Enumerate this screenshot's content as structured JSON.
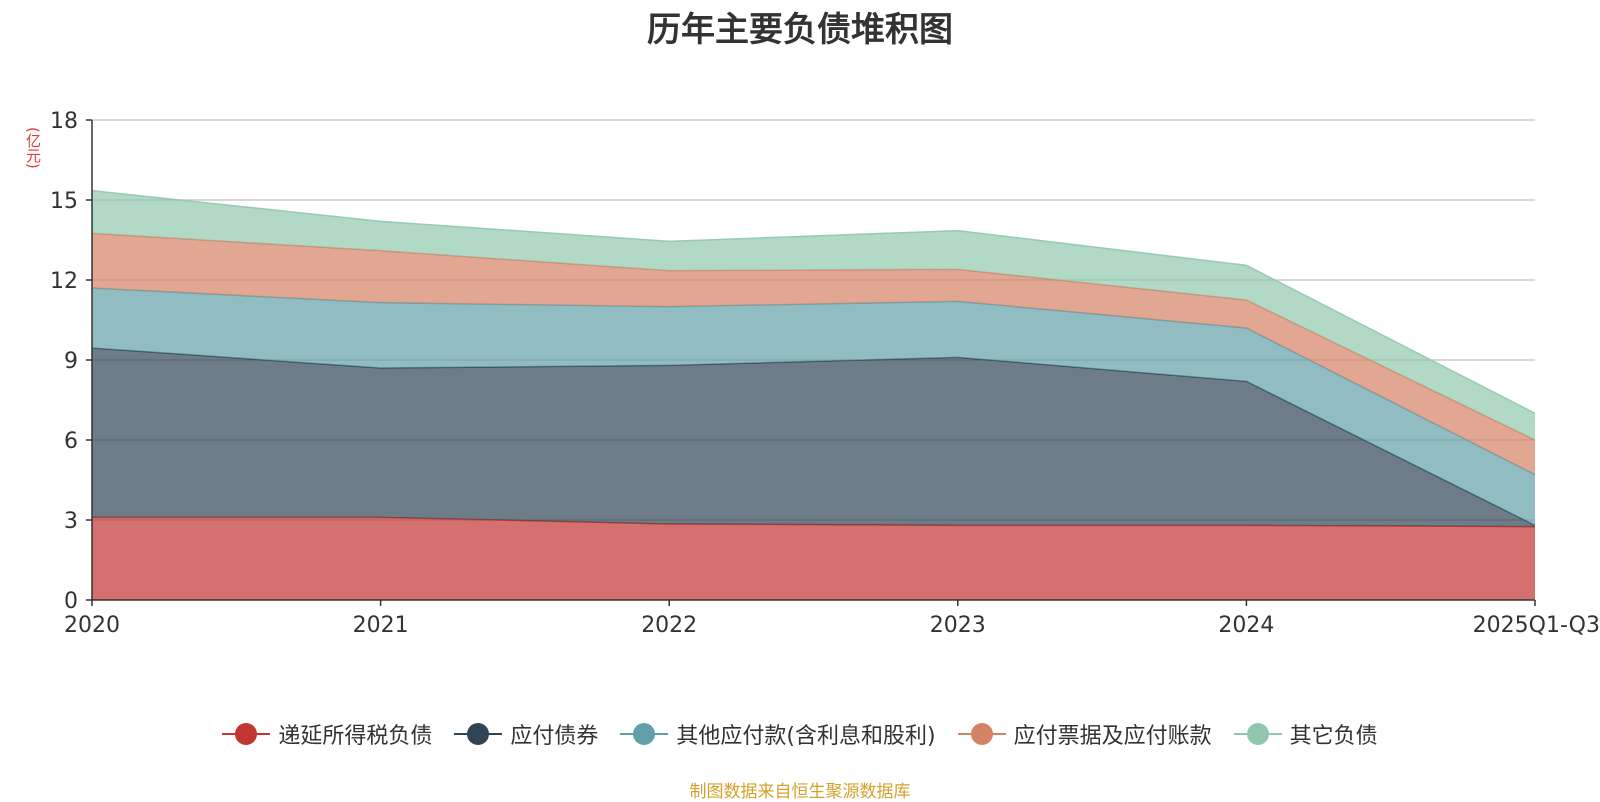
{
  "title": "历年主要负债堆积图",
  "unit_label": "(亿元)",
  "source": "制图数据来自恒生聚源数据库",
  "chart_data": {
    "type": "area",
    "stacked": true,
    "categories": [
      "2020",
      "2021",
      "2022",
      "2023",
      "2024",
      "2025Q1-Q3"
    ],
    "ylim": [
      0,
      18
    ],
    "yticks": [
      0,
      3,
      6,
      9,
      12,
      15,
      18
    ],
    "grid": true,
    "legend_position": "bottom",
    "series": [
      {
        "name": "递延所得税负债",
        "color": "#c23531",
        "values": [
          3.1,
          3.1,
          2.85,
          2.8,
          2.8,
          2.75
        ]
      },
      {
        "name": "应付债券",
        "color": "#2f4554",
        "values": [
          6.35,
          5.6,
          5.95,
          6.3,
          5.4,
          0.05
        ]
      },
      {
        "name": "其他应付款(含利息和股利)",
        "color": "#61a0a8",
        "values": [
          2.25,
          2.45,
          2.2,
          2.1,
          2.0,
          1.9
        ]
      },
      {
        "name": "应付票据及应付账款",
        "color": "#d48265",
        "values": [
          2.05,
          1.95,
          1.35,
          1.2,
          1.05,
          1.3
        ]
      },
      {
        "name": "其它负债",
        "color": "#91c7ae",
        "values": [
          1.6,
          1.1,
          1.1,
          1.45,
          1.3,
          1.0
        ]
      }
    ]
  }
}
